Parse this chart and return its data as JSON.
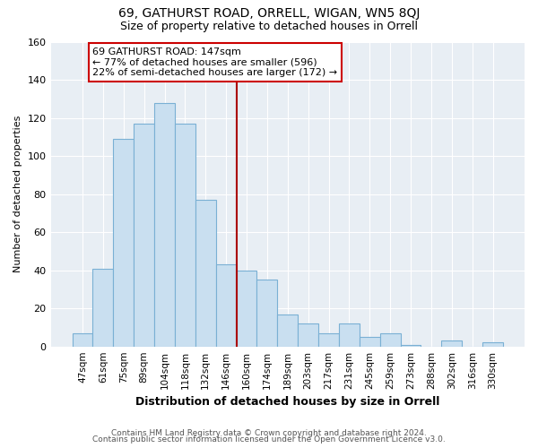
{
  "title": "69, GATHURST ROAD, ORRELL, WIGAN, WN5 8QJ",
  "subtitle": "Size of property relative to detached houses in Orrell",
  "xlabel": "Distribution of detached houses by size in Orrell",
  "ylabel": "Number of detached properties",
  "bar_labels": [
    "47sqm",
    "61sqm",
    "75sqm",
    "89sqm",
    "104sqm",
    "118sqm",
    "132sqm",
    "146sqm",
    "160sqm",
    "174sqm",
    "189sqm",
    "203sqm",
    "217sqm",
    "231sqm",
    "245sqm",
    "259sqm",
    "273sqm",
    "288sqm",
    "302sqm",
    "316sqm",
    "330sqm"
  ],
  "bar_values": [
    7,
    41,
    109,
    117,
    128,
    117,
    77,
    43,
    40,
    35,
    17,
    12,
    7,
    12,
    5,
    7,
    1,
    0,
    3,
    0,
    2
  ],
  "bar_color": "#c9dff0",
  "bar_edge_color": "#7ab0d4",
  "vline_color": "#aa0000",
  "vline_position": 7.5,
  "ylim": [
    0,
    160
  ],
  "yticks": [
    0,
    20,
    40,
    60,
    80,
    100,
    120,
    140,
    160
  ],
  "annotation_title": "69 GATHURST ROAD: 147sqm",
  "annotation_line1": "← 77% of detached houses are smaller (596)",
  "annotation_line2": "22% of semi-detached houses are larger (172) →",
  "annotation_box_color": "#ffffff",
  "annotation_box_edge": "#cc0000",
  "footer_line1": "Contains HM Land Registry data © Crown copyright and database right 2024.",
  "footer_line2": "Contains public sector information licensed under the Open Government Licence v3.0.",
  "background_color": "#ffffff",
  "plot_bg_color": "#e8eef4",
  "grid_color": "#ffffff",
  "title_fontsize": 10,
  "subtitle_fontsize": 9
}
